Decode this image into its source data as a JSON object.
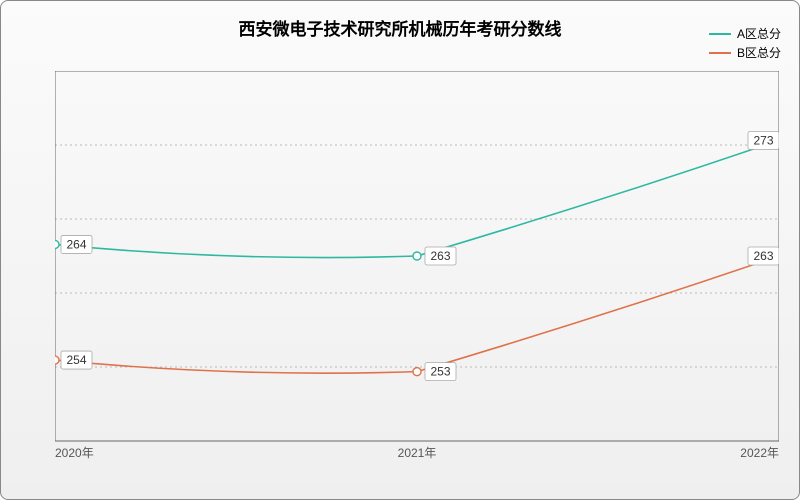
{
  "chart": {
    "type": "line",
    "title": "西安微电子技术研究所机械历年考研分数线",
    "title_fontsize": 17,
    "background_gradient": [
      "#fbfbfb",
      "#efefef"
    ],
    "border_color": "#888888",
    "grid_color": "#bbbbbb",
    "axis_color": "#666666",
    "x": {
      "categories": [
        "2020年",
        "2021年",
        "2022年"
      ],
      "tick_fontsize": 12
    },
    "y": {
      "min": 247,
      "max": 279,
      "ticks": [
        247,
        253.4,
        259.8,
        266.2,
        272.6,
        279
      ],
      "tick_fontsize": 12
    },
    "series": [
      {
        "name": "A区总分",
        "color": "#2fb8a0",
        "marker": "circle",
        "values": [
          264,
          263,
          273
        ]
      },
      {
        "name": "B区总分",
        "color": "#e0714a",
        "marker": "circle",
        "values": [
          254,
          253,
          263
        ]
      }
    ],
    "curve_interp": "smooth",
    "line_width": 1.6,
    "marker_size": 4,
    "label_box_fill": "#ffffff",
    "label_box_stroke": "#aaaaaa",
    "label_fontsize": 12,
    "legend": {
      "position": "top-right",
      "fontsize": 12
    }
  }
}
